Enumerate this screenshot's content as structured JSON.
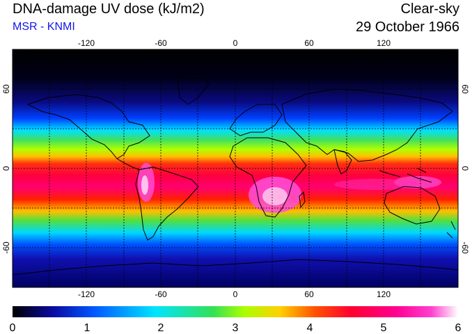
{
  "header": {
    "title": "DNA-damage UV dose (kJ/m2)",
    "subtitle": "MSR - KNMI",
    "condition": "Clear-sky",
    "date": "29 October 1966"
  },
  "map": {
    "lon_ticks": [
      "-120",
      "-60",
      "0",
      "60",
      "120"
    ],
    "lat_ticks_left": [
      "60",
      "0",
      "-60"
    ],
    "lat_ticks_right": [
      "60",
      "0",
      "-60"
    ]
  },
  "colorbar": {
    "labels": [
      "0",
      "1",
      "2",
      "3",
      "4",
      "5",
      "6"
    ],
    "stops": [
      "#000000",
      "#0a0aa0",
      "#0055ff",
      "#00e5ff",
      "#33e055",
      "#aaff00",
      "#ffd000",
      "#ff5000",
      "#ff0030",
      "#ff0090",
      "#ff40d0",
      "#ffffff"
    ]
  }
}
